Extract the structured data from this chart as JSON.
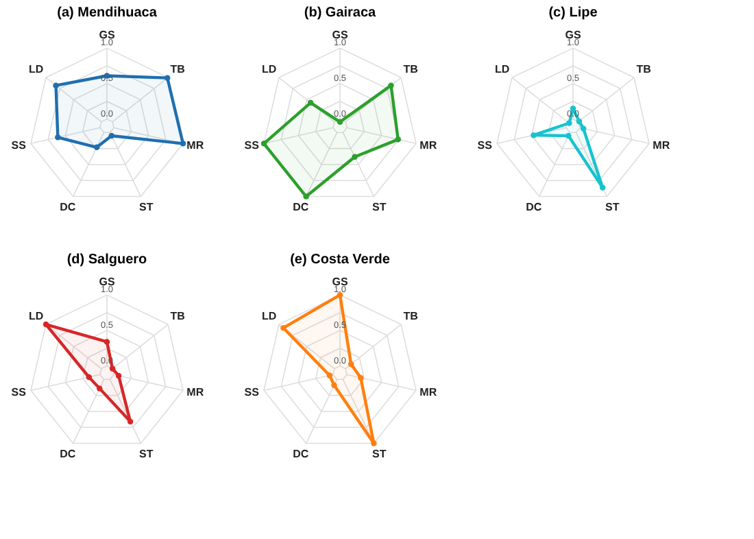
{
  "chart_data": [
    {
      "type": "radar",
      "title": "(a) Mendihuaca",
      "categories": [
        "GS",
        "TB",
        "MR",
        "ST",
        "DC",
        "SS",
        "LD"
      ],
      "series": [
        {
          "color": "#1f6fb0",
          "values": [
            0.61,
            0.99,
            1.0,
            0.05,
            0.23,
            0.61,
            0.82
          ]
        }
      ],
      "ylim": [
        -0.1,
        1.0
      ],
      "yticks": [
        {
          "value": 0,
          "label": "0.0"
        },
        {
          "value": 0.5,
          "label": "0.5"
        },
        {
          "value": 1.0,
          "label": "1.0"
        }
      ],
      "grid": true,
      "marker": "circle",
      "line_style": "solid"
    },
    {
      "type": "radar",
      "title": "(b) Gairaca",
      "categories": [
        "GS",
        "TB",
        "MR",
        "ST",
        "DC",
        "SS",
        "LD"
      ],
      "series": [
        {
          "color": "#2ca02c",
          "values": [
            -0.04,
            0.82,
            0.74,
            0.38,
            1.0,
            1.0,
            0.43
          ]
        }
      ],
      "ylim": [
        -0.1,
        1.0
      ],
      "yticks": [
        {
          "value": 0,
          "label": "0.0"
        },
        {
          "value": 0.5,
          "label": "0.5"
        },
        {
          "value": 1.0,
          "label": "1.0"
        }
      ],
      "grid": true,
      "marker": "circle",
      "line_style": "solid"
    },
    {
      "type": "radar",
      "title": "(c) Lipe",
      "categories": [
        "GS",
        "TB",
        "MR",
        "ST",
        "DC",
        "SS",
        "LD"
      ],
      "series": [
        {
          "color": "#17c3cf",
          "values": [
            0.15,
            0.01,
            0.05,
            0.86,
            0.05,
            0.47,
            -0.03
          ]
        }
      ],
      "ylim": [
        -0.1,
        1.0
      ],
      "yticks": [
        {
          "value": 0,
          "label": "0.0"
        },
        {
          "value": 0.5,
          "label": "0.5"
        },
        {
          "value": 1.0,
          "label": "1.0"
        }
      ],
      "grid": true,
      "marker": "circle",
      "line_style": "solid"
    },
    {
      "type": "radar",
      "title": "(d) Salguero",
      "categories": [
        "GS",
        "TB",
        "MR",
        "ST",
        "DC",
        "SS",
        "LD"
      ],
      "series": [
        {
          "color": "#d62728",
          "values": [
            0.34,
            0.0,
            0.07,
            0.66,
            0.14,
            0.16,
            1.0
          ]
        }
      ],
      "ylim": [
        -0.1,
        1.0
      ],
      "yticks": [
        {
          "value": 0,
          "label": "0.0"
        },
        {
          "value": 0.5,
          "label": "0.5"
        },
        {
          "value": 1.0,
          "label": "1.0"
        }
      ],
      "grid": true,
      "marker": "circle",
      "line_style": "solid"
    },
    {
      "type": "radar",
      "title": "(e) Costa Verde",
      "categories": [
        "GS",
        "TB",
        "MR",
        "ST",
        "DC",
        "SS",
        "LD"
      ],
      "series": [
        {
          "color": "#ff7f0e",
          "values": [
            1.0,
            0.1,
            0.2,
            1.0,
            0.09,
            0.05,
            0.92
          ]
        }
      ],
      "ylim": [
        -0.1,
        1.0
      ],
      "yticks": [
        {
          "value": 0,
          "label": "0.0"
        },
        {
          "value": 0.5,
          "label": "0.5"
        },
        {
          "value": 1.0,
          "label": "1.0"
        }
      ],
      "grid": true,
      "marker": "circle",
      "line_style": "solid"
    }
  ]
}
